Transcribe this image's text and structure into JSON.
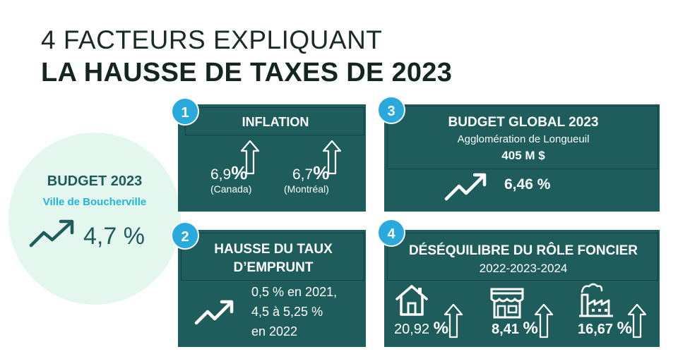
{
  "title": {
    "line1": "4 FACTEURS EXPLIQUANT",
    "line2": "LA HAUSSE DE TAXES DE 2023"
  },
  "budget": {
    "title": "BUDGET 2023",
    "subtitle": "Ville de Boucherville",
    "value": "4,7 %",
    "icon": "trend-up-icon"
  },
  "cards": {
    "inflation": {
      "number": "1",
      "title": "INFLATION",
      "canada_value": "6,9",
      "canada_pct": "%",
      "canada_label": "(Canada)",
      "montreal_value": "6,7",
      "montreal_pct": "%",
      "montreal_label": "(Montréal)"
    },
    "emprunt": {
      "number": "2",
      "title_line1": "HAUSSE DU TAUX",
      "title_line2": "D’EMPRUNT",
      "line1": "0,5 % en 2021,",
      "line2": "4,5 à 5,25 %",
      "line3": "en 2022"
    },
    "budget_global": {
      "number": "3",
      "title": "BUDGET GLOBAL 2023",
      "subtitle": "Agglomération de Longueuil",
      "amount": "405 M $",
      "value": "6,46 %"
    },
    "role": {
      "number": "4",
      "title": "DÉSÉQUILIBRE DU RÔLE FONCIER",
      "years": "2022-2023-2024",
      "house_value": "20,92",
      "house_pct": "%",
      "store_value": "8,41",
      "store_pct": "%",
      "factory_value": "16,67",
      "factory_pct": "%"
    }
  },
  "colors": {
    "card": "#1f5d5c",
    "badge": "#29a9dc",
    "circle": "#e3f7ef",
    "accent_text": "#21b5d8"
  }
}
